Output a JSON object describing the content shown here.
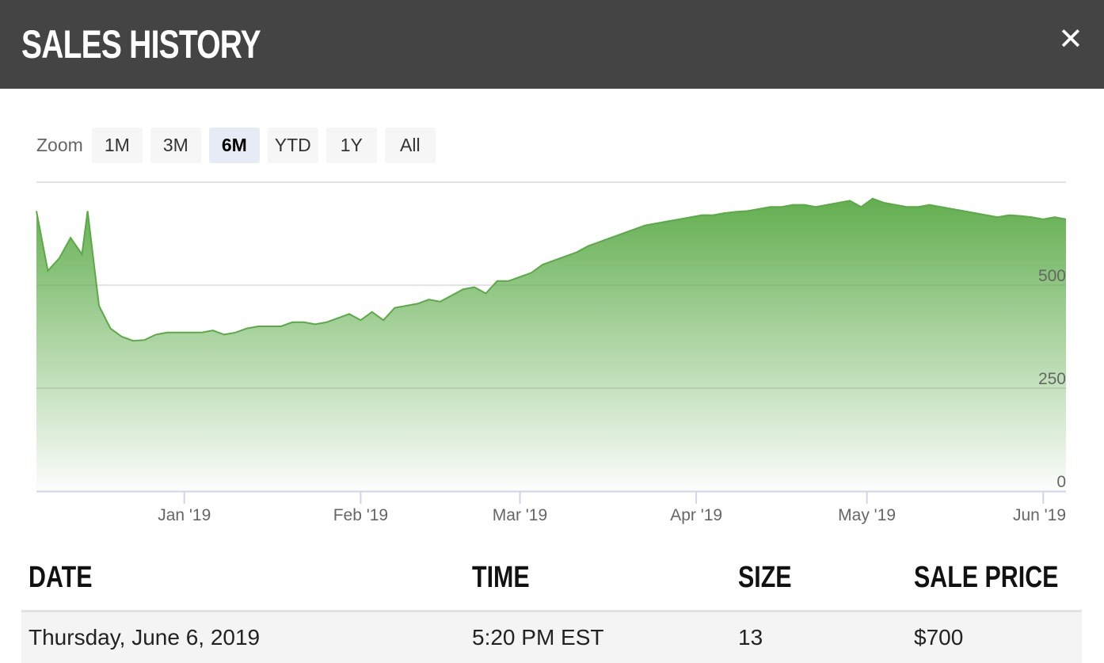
{
  "header": {
    "title": "SALES HISTORY",
    "close_icon": "close-icon",
    "background": "#444444"
  },
  "zoom": {
    "label": "Zoom",
    "buttons": [
      "1M",
      "3M",
      "6M",
      "YTD",
      "1Y",
      "All"
    ],
    "active": "6M"
  },
  "chart_data": {
    "type": "area",
    "color": "#5aaa46",
    "ylim": [
      0,
      750
    ],
    "yticks": [
      0,
      250,
      500
    ],
    "grid": true,
    "x_tick_labels": [
      "Jan '19",
      "Feb '19",
      "Mar '19",
      "Apr '19",
      "May '19",
      "Jun '19"
    ],
    "x_tick_dates": [
      "2019-01-01",
      "2019-02-01",
      "2019-03-01",
      "2019-04-01",
      "2019-05-01",
      "2019-06-01"
    ],
    "xlim": [
      "2018-12-06",
      "2019-06-05"
    ],
    "series": [
      {
        "x": [
          "2018-12-06",
          "2018-12-08",
          "2018-12-10",
          "2018-12-12",
          "2018-12-14",
          "2018-12-15",
          "2018-12-17",
          "2018-12-19",
          "2018-12-21",
          "2018-12-23",
          "2018-12-25",
          "2018-12-27",
          "2018-12-29",
          "2018-12-31",
          "2019-01-02",
          "2019-01-04",
          "2019-01-06",
          "2019-01-08",
          "2019-01-10",
          "2019-01-12",
          "2019-01-14",
          "2019-01-16",
          "2019-01-18",
          "2019-01-20",
          "2019-01-22",
          "2019-01-24",
          "2019-01-26",
          "2019-01-28",
          "2019-01-30",
          "2019-02-01",
          "2019-02-03",
          "2019-02-05",
          "2019-02-07",
          "2019-02-09",
          "2019-02-11",
          "2019-02-13",
          "2019-02-15",
          "2019-02-17",
          "2019-02-19",
          "2019-02-21",
          "2019-02-23",
          "2019-02-25",
          "2019-02-27",
          "2019-03-01",
          "2019-03-03",
          "2019-03-05",
          "2019-03-07",
          "2019-03-09",
          "2019-03-11",
          "2019-03-13",
          "2019-03-15",
          "2019-03-17",
          "2019-03-19",
          "2019-03-21",
          "2019-03-23",
          "2019-03-25",
          "2019-03-27",
          "2019-03-29",
          "2019-03-31",
          "2019-04-02",
          "2019-04-04",
          "2019-04-06",
          "2019-04-08",
          "2019-04-10",
          "2019-04-12",
          "2019-04-14",
          "2019-04-16",
          "2019-04-18",
          "2019-04-20",
          "2019-04-22",
          "2019-04-24",
          "2019-04-26",
          "2019-04-28",
          "2019-04-30",
          "2019-05-02",
          "2019-05-04",
          "2019-05-06",
          "2019-05-08",
          "2019-05-10",
          "2019-05-12",
          "2019-05-14",
          "2019-05-16",
          "2019-05-18",
          "2019-05-20",
          "2019-05-22",
          "2019-05-24",
          "2019-05-26",
          "2019-05-28",
          "2019-05-30",
          "2019-06-01",
          "2019-06-03",
          "2019-06-05"
        ],
        "y": [
          680,
          535,
          565,
          615,
          575,
          680,
          450,
          395,
          375,
          365,
          367,
          380,
          385,
          385,
          385,
          385,
          390,
          380,
          385,
          395,
          400,
          400,
          400,
          410,
          410,
          405,
          410,
          420,
          430,
          415,
          435,
          415,
          445,
          450,
          455,
          465,
          460,
          475,
          490,
          495,
          480,
          510,
          510,
          520,
          530,
          550,
          560,
          570,
          580,
          595,
          605,
          615,
          625,
          635,
          645,
          650,
          655,
          660,
          665,
          670,
          670,
          675,
          678,
          680,
          685,
          690,
          690,
          695,
          695,
          690,
          695,
          700,
          705,
          690,
          710,
          700,
          695,
          690,
          690,
          695,
          690,
          685,
          680,
          675,
          670,
          665,
          670,
          668,
          665,
          660,
          665,
          660
        ]
      }
    ]
  },
  "table": {
    "columns": [
      "DATE",
      "TIME",
      "SIZE",
      "SALE PRICE"
    ],
    "rows": [
      [
        "Thursday, June 6, 2019",
        "5:20 PM EST",
        "13",
        "$700"
      ]
    ]
  }
}
